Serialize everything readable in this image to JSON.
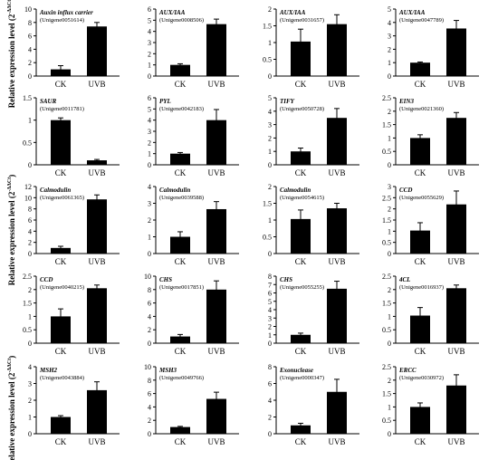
{
  "ylabel": "Relative expression level (2",
  "ylabel_sup": "-ΔΔCt",
  "ylabel_close": ")",
  "chart_data": [
    {
      "type": "bar",
      "title": "Auxin influx carrier",
      "subtitle": "(Unigene0051614)",
      "categories": [
        "CK",
        "UVB"
      ],
      "values": [
        1.0,
        7.4
      ],
      "errors": [
        0.55,
        0.6
      ],
      "ylim": [
        0,
        10
      ],
      "yticks": [
        0,
        2,
        4,
        6,
        8,
        10
      ]
    },
    {
      "type": "bar",
      "title": "AUX/IAA",
      "subtitle": "(Unigene0008506)",
      "categories": [
        "CK",
        "UVB"
      ],
      "values": [
        1.0,
        4.65
      ],
      "errors": [
        0.1,
        0.45
      ],
      "ylim": [
        0,
        6
      ],
      "yticks": [
        0,
        1,
        2,
        3,
        4,
        5,
        6
      ]
    },
    {
      "type": "bar",
      "title": "AUX/IAA",
      "subtitle": "(Unigene0031657)",
      "categories": [
        "CK",
        "UVB"
      ],
      "values": [
        1.03,
        1.55
      ],
      "errors": [
        0.37,
        0.28
      ],
      "ylim": [
        0,
        2
      ],
      "yticks": [
        0,
        0.5,
        1,
        1.5,
        2
      ]
    },
    {
      "type": "bar",
      "title": "AUX/IAA",
      "subtitle": "(Unigene0047789)",
      "categories": [
        "CK",
        "UVB"
      ],
      "values": [
        1.0,
        3.55
      ],
      "errors": [
        0.05,
        0.6
      ],
      "ylim": [
        0,
        5
      ],
      "yticks": [
        0,
        1,
        2,
        3,
        4,
        5
      ]
    },
    {
      "type": "bar",
      "title": "SAUR",
      "subtitle": "(Unigene0011781)",
      "categories": [
        "CK",
        "UVB"
      ],
      "values": [
        1.0,
        0.1
      ],
      "errors": [
        0.05,
        0.02
      ],
      "ylim": [
        0,
        1.5
      ],
      "yticks": [
        0,
        0.5,
        1,
        1.5
      ]
    },
    {
      "type": "bar",
      "title": "PYL",
      "subtitle": "(Unigene0042183)",
      "categories": [
        "CK",
        "UVB"
      ],
      "values": [
        1.0,
        4.0
      ],
      "errors": [
        0.1,
        0.95
      ],
      "ylim": [
        0,
        6
      ],
      "yticks": [
        0,
        1,
        2,
        3,
        4,
        5,
        6
      ]
    },
    {
      "type": "bar",
      "title": "TIFY",
      "subtitle": "(Unigene0050728)",
      "categories": [
        "CK",
        "UVB"
      ],
      "values": [
        1.0,
        3.5
      ],
      "errors": [
        0.25,
        0.7
      ],
      "ylim": [
        0,
        5
      ],
      "yticks": [
        0,
        1,
        2,
        3,
        4,
        5
      ]
    },
    {
      "type": "bar",
      "title": "EIN3",
      "subtitle": "(Unigene0021360)",
      "categories": [
        "CK",
        "UVB"
      ],
      "values": [
        1.0,
        1.75
      ],
      "errors": [
        0.12,
        0.2
      ],
      "ylim": [
        0,
        2.5
      ],
      "yticks": [
        0,
        0.5,
        1,
        1.5,
        2,
        2.5
      ]
    },
    {
      "type": "bar",
      "title": "Calmodulin",
      "subtitle": "(Unigene0061365)",
      "categories": [
        "CK",
        "UVB"
      ],
      "values": [
        1.0,
        9.7
      ],
      "errors": [
        0.3,
        0.8
      ],
      "ylim": [
        0,
        12
      ],
      "yticks": [
        0,
        2,
        4,
        6,
        8,
        10,
        12
      ]
    },
    {
      "type": "bar",
      "title": "Calmodulin",
      "subtitle": "(Unigene0039588)",
      "categories": [
        "CK",
        "UVB"
      ],
      "values": [
        1.0,
        2.65
      ],
      "errors": [
        0.3,
        0.45
      ],
      "ylim": [
        0,
        4
      ],
      "yticks": [
        0,
        1,
        2,
        3,
        4
      ]
    },
    {
      "type": "bar",
      "title": "Calmodulin",
      "subtitle": "(Unigene0054615)",
      "categories": [
        "CK",
        "UVB"
      ],
      "values": [
        1.03,
        1.35
      ],
      "errors": [
        0.27,
        0.15
      ],
      "ylim": [
        0,
        2
      ],
      "yticks": [
        0,
        0.5,
        1,
        1.5,
        2
      ]
    },
    {
      "type": "bar",
      "title": "CCD",
      "subtitle": "(Unigene0055629)",
      "categories": [
        "CK",
        "UVB"
      ],
      "values": [
        1.03,
        2.2
      ],
      "errors": [
        0.35,
        0.6
      ],
      "ylim": [
        0,
        3
      ],
      "yticks": [
        0,
        0.5,
        1,
        1.5,
        2,
        2.5,
        3
      ]
    },
    {
      "type": "bar",
      "title": "CCD",
      "subtitle": "(Unigene0040215)",
      "categories": [
        "CK",
        "UVB"
      ],
      "values": [
        1.0,
        2.05
      ],
      "errors": [
        0.28,
        0.12
      ],
      "ylim": [
        0,
        2.5
      ],
      "yticks": [
        0,
        0.5,
        1,
        1.5,
        2,
        2.5
      ]
    },
    {
      "type": "bar",
      "title": "CHS",
      "subtitle": "(Unigene0017851)",
      "categories": [
        "CK",
        "UVB"
      ],
      "values": [
        1.0,
        8.0
      ],
      "errors": [
        0.3,
        1.3
      ],
      "ylim": [
        0,
        10
      ],
      "yticks": [
        0,
        2,
        4,
        6,
        8,
        10
      ]
    },
    {
      "type": "bar",
      "title": "CHS",
      "subtitle": "(Unigene0055255)",
      "categories": [
        "CK",
        "UVB"
      ],
      "values": [
        1.0,
        6.5
      ],
      "errors": [
        0.2,
        0.9
      ],
      "ylim": [
        0,
        8
      ],
      "yticks": [
        0,
        1,
        2,
        3,
        4,
        5,
        6,
        7,
        8
      ]
    },
    {
      "type": "bar",
      "title": "4CL",
      "subtitle": "(Unigene0016937)",
      "categories": [
        "CK",
        "UVB"
      ],
      "values": [
        1.03,
        2.05
      ],
      "errors": [
        0.3,
        0.12
      ],
      "ylim": [
        0,
        2.5
      ],
      "yticks": [
        0,
        0.5,
        1,
        1.5,
        2,
        2.5
      ]
    },
    {
      "type": "bar",
      "title": "MSH2",
      "subtitle": "(Unigene0043884)",
      "categories": [
        "CK",
        "UVB"
      ],
      "values": [
        1.0,
        2.6
      ],
      "errors": [
        0.08,
        0.5
      ],
      "ylim": [
        0,
        4
      ],
      "yticks": [
        0,
        1,
        2,
        3,
        4
      ]
    },
    {
      "type": "bar",
      "title": "MSH3",
      "subtitle": "(Unigene0049766)",
      "categories": [
        "CK",
        "UVB"
      ],
      "values": [
        1.0,
        5.2
      ],
      "errors": [
        0.1,
        1.0
      ],
      "ylim": [
        0,
        10
      ],
      "yticks": [
        0,
        2,
        4,
        6,
        8,
        10
      ]
    },
    {
      "type": "bar",
      "title": "Exonuclease",
      "subtitle": "(Unigene0000347)",
      "categories": [
        "CK",
        "UVB"
      ],
      "values": [
        1.0,
        5.0
      ],
      "errors": [
        0.25,
        1.5
      ],
      "ylim": [
        0,
        8
      ],
      "yticks": [
        0,
        2,
        4,
        6,
        8
      ]
    },
    {
      "type": "bar",
      "title": "ERCC",
      "subtitle": "(Unigene0030972)",
      "categories": [
        "CK",
        "UVB"
      ],
      "values": [
        1.0,
        1.8
      ],
      "errors": [
        0.15,
        0.4
      ],
      "ylim": [
        0,
        2.5
      ],
      "yticks": [
        0,
        0.5,
        1,
        1.5,
        2,
        2.5
      ]
    }
  ]
}
